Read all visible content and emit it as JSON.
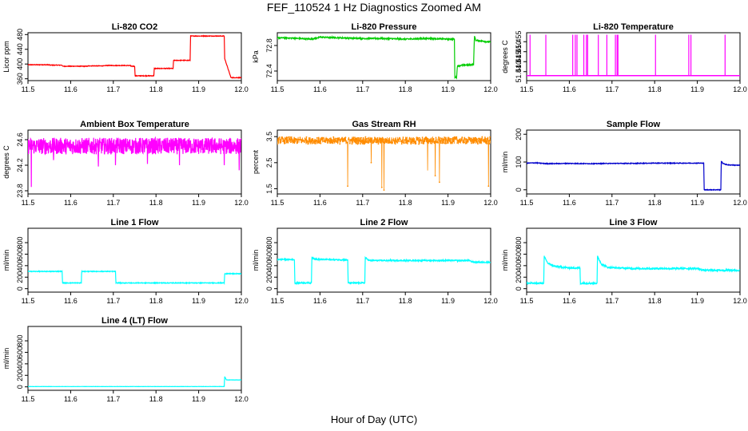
{
  "page": {
    "title": "FEF_110524  1 Hz Diagnostics Zoomed AM",
    "xlabel": "Hour of Day (UTC)"
  },
  "chart_data": [
    {
      "id": "co2",
      "type": "line",
      "title": "Li-820 CO2",
      "xlabel": "",
      "ylabel": "Licor ppm",
      "xlim": [
        11.5,
        12.0
      ],
      "ylim": [
        355,
        485
      ],
      "xticks": [
        "11.5",
        "11.6",
        "11.7",
        "11.8",
        "11.9",
        "12.0"
      ],
      "yticks": [
        "360",
        "400",
        "440",
        "480"
      ],
      "color": "#ff0000",
      "noise": 0.8,
      "series": [
        {
          "x": [
            11.5,
            11.55,
            11.551,
            11.58,
            11.581,
            11.64,
            11.641,
            11.68,
            11.681,
            11.74,
            11.741,
            11.75,
            11.751,
            11.76,
            11.761,
            11.795,
            11.796,
            11.84,
            11.841,
            11.88,
            11.881,
            11.96,
            11.961,
            11.975,
            11.976,
            12.0
          ],
          "y": [
            398,
            398,
            397,
            397,
            394,
            394,
            395,
            395,
            396,
            396,
            394,
            394,
            368,
            368,
            368,
            368,
            388,
            388,
            410,
            410,
            476,
            476,
            415,
            365,
            363,
            363
          ]
        }
      ]
    },
    {
      "id": "pressure",
      "type": "line",
      "title": "Li-820 Pressure",
      "xlabel": "",
      "ylabel": "kPa",
      "xlim": [
        11.5,
        12.0
      ],
      "ylim": [
        72.25,
        73.0
      ],
      "xticks": [
        "11.5",
        "11.6",
        "11.7",
        "11.8",
        "11.9",
        "12.0"
      ],
      "yticks": [
        "72.4",
        "72.8"
      ],
      "color": "#00cc00",
      "noise": 0.01,
      "series": [
        {
          "x": [
            11.5,
            11.52,
            11.55,
            11.58,
            11.6,
            11.65,
            11.7,
            11.75,
            11.8,
            11.85,
            11.9,
            11.915,
            11.916,
            11.92,
            11.922,
            11.93,
            11.96,
            11.962,
            11.965,
            11.98,
            12.0
          ],
          "y": [
            72.92,
            72.92,
            72.91,
            72.9,
            72.93,
            72.92,
            72.91,
            72.91,
            72.9,
            72.91,
            72.9,
            72.9,
            72.3,
            72.3,
            72.48,
            72.49,
            72.5,
            72.95,
            72.88,
            72.87,
            72.85
          ]
        }
      ]
    },
    {
      "id": "temperature",
      "type": "line",
      "title": "Li-820 Temperature",
      "xlabel": "",
      "ylabel": "degrees C",
      "xlim": [
        11.5,
        12.0
      ],
      "ylim": [
        51.4355,
        51.4595
      ],
      "xticks": [
        "11.5",
        "11.6",
        "11.7",
        "11.8",
        "11.9",
        "12.0"
      ],
      "yticks": [
        "51.440",
        "51.445",
        "51.450",
        "51.455"
      ],
      "color": "#ff00ff",
      "noise": 0,
      "baseline": 51.438,
      "spike_top": 51.4585,
      "spikes": [
        11.508,
        11.545,
        11.608,
        11.614,
        11.618,
        11.634,
        11.64,
        11.643,
        11.668,
        11.688,
        11.708,
        11.712,
        11.714,
        11.802,
        11.88,
        11.885,
        11.965
      ]
    },
    {
      "id": "ambient",
      "type": "line",
      "title": "Ambient Box Temperature",
      "xlabel": "",
      "ylabel": "degrees C",
      "xlim": [
        11.5,
        12.0
      ],
      "ylim": [
        23.75,
        24.75
      ],
      "xticks": [
        "11.5",
        "11.6",
        "11.7",
        "11.8",
        "11.9",
        "12.0"
      ],
      "yticks": [
        "23.8",
        "24.2",
        "24.6"
      ],
      "color": "#ff00ff",
      "noise": 0.13,
      "series": [
        {
          "x": [
            11.5,
            12.0
          ],
          "y": [
            24.5,
            24.5
          ]
        }
      ],
      "dips": [
        [
          11.508,
          23.86
        ],
        [
          11.56,
          24.28
        ],
        [
          11.665,
          24.18
        ],
        [
          11.705,
          24.2
        ],
        [
          11.78,
          24.22
        ],
        [
          11.855,
          24.2
        ],
        [
          11.96,
          24.2
        ],
        [
          11.995,
          24.12
        ]
      ]
    },
    {
      "id": "rh",
      "type": "scatter",
      "title": "Gas Stream RH",
      "xlabel": "",
      "ylabel": "percent",
      "xlim": [
        11.5,
        12.0
      ],
      "ylim": [
        1.3,
        3.75
      ],
      "xticks": [
        "11.5",
        "11.6",
        "11.7",
        "11.8",
        "11.9",
        "12.0"
      ],
      "yticks": [
        "1.5",
        "2.5",
        "3.5"
      ],
      "color": "#ff8c00",
      "noise": 0.14,
      "series": [
        {
          "x": [
            11.5,
            12.0
          ],
          "y": [
            3.35,
            3.35
          ]
        }
      ],
      "dips": [
        [
          11.665,
          1.6
        ],
        [
          11.72,
          2.5
        ],
        [
          11.745,
          1.55
        ],
        [
          11.75,
          1.45
        ],
        [
          11.852,
          2.2
        ],
        [
          11.87,
          2.0
        ],
        [
          11.88,
          1.75
        ],
        [
          11.995,
          1.6
        ]
      ]
    },
    {
      "id": "sample",
      "type": "line",
      "title": "Sample Flow",
      "xlabel": "",
      "ylabel": "ml/min",
      "xlim": [
        11.5,
        12.0
      ],
      "ylim": [
        -15,
        215
      ],
      "xticks": [
        "11.5",
        "11.6",
        "11.7",
        "11.8",
        "11.9",
        "12.0"
      ],
      "yticks": [
        "0",
        "100",
        "200"
      ],
      "color": "#0000cc",
      "noise": 1.2,
      "series": [
        {
          "x": [
            11.5,
            11.52,
            11.55,
            11.6,
            11.65,
            11.7,
            11.75,
            11.8,
            11.85,
            11.9,
            11.915,
            11.916,
            11.955,
            11.956,
            11.96,
            11.97,
            12.0
          ],
          "y": [
            96,
            97,
            94,
            95,
            94,
            95,
            95,
            96,
            96,
            96,
            96,
            0,
            0,
            103,
            95,
            90,
            88
          ]
        }
      ]
    },
    {
      "id": "line1",
      "type": "line",
      "title": "Line 1 Flow",
      "xlabel": "",
      "ylabel": "ml/min",
      "xlim": [
        11.5,
        12.0
      ],
      "ylim": [
        -60,
        1050
      ],
      "xticks": [
        "11.5",
        "11.6",
        "11.7",
        "11.8",
        "11.9",
        "12.0"
      ],
      "yticks": [
        "0",
        "200",
        "400",
        "600",
        "800"
      ],
      "color": "#00ffff",
      "noise": 6,
      "series": [
        {
          "x": [
            11.5,
            11.58,
            11.581,
            11.625,
            11.626,
            11.705,
            11.706,
            11.96,
            11.961,
            12.0
          ],
          "y": [
            300,
            300,
            100,
            100,
            300,
            300,
            100,
            100,
            260,
            260
          ]
        }
      ]
    },
    {
      "id": "line2",
      "type": "line",
      "title": "Line 2 Flow",
      "xlabel": "",
      "ylabel": "ml/min",
      "xlim": [
        11.5,
        12.0
      ],
      "ylim": [
        -60,
        1050
      ],
      "xticks": [
        "11.5",
        "11.6",
        "11.7",
        "11.8",
        "11.9",
        "12.0"
      ],
      "yticks": [
        "0",
        "200",
        "400",
        "600",
        "800"
      ],
      "color": "#00ffff",
      "noise": 10,
      "series": [
        {
          "x": [
            11.5,
            11.54,
            11.541,
            11.58,
            11.581,
            11.59,
            11.665,
            11.666,
            11.705,
            11.706,
            11.715,
            11.95,
            11.96,
            12.0
          ],
          "y": [
            510,
            505,
            100,
            100,
            540,
            510,
            500,
            100,
            100,
            540,
            490,
            490,
            460,
            460
          ]
        }
      ]
    },
    {
      "id": "line3",
      "type": "line",
      "title": "Line 3 Flow",
      "xlabel": "",
      "ylabel": "ml/min",
      "xlim": [
        11.5,
        12.0
      ],
      "ylim": [
        -60,
        1050
      ],
      "xticks": [
        "11.5",
        "11.6",
        "11.7",
        "11.8",
        "11.9",
        "12.0"
      ],
      "yticks": [
        "0",
        "200",
        "400",
        "600",
        "800"
      ],
      "color": "#00ffff",
      "noise": 14,
      "series": [
        {
          "x": [
            11.5,
            11.54,
            11.541,
            11.55,
            11.565,
            11.6,
            11.625,
            11.626,
            11.665,
            11.666,
            11.675,
            11.69,
            11.75,
            11.9,
            11.915,
            11.93,
            12.0
          ],
          "y": [
            95,
            95,
            560,
            440,
            390,
            360,
            360,
            95,
            95,
            560,
            430,
            370,
            350,
            350,
            320,
            320,
            320
          ]
        }
      ]
    },
    {
      "id": "line4",
      "type": "line",
      "title": "Line 4 (LT) Flow",
      "xlabel": "",
      "ylabel": "ml/min",
      "xlim": [
        11.5,
        12.0
      ],
      "ylim": [
        -60,
        1050
      ],
      "xticks": [
        "11.5",
        "11.6",
        "11.7",
        "11.8",
        "11.9",
        "12.0"
      ],
      "yticks": [
        "0",
        "200",
        "400",
        "600",
        "800"
      ],
      "color": "#00ffff",
      "noise": 1.5,
      "series": [
        {
          "x": [
            11.5,
            11.96,
            11.961,
            11.965,
            12.0
          ],
          "y": [
            5,
            5,
            180,
            120,
            120
          ]
        }
      ]
    }
  ]
}
